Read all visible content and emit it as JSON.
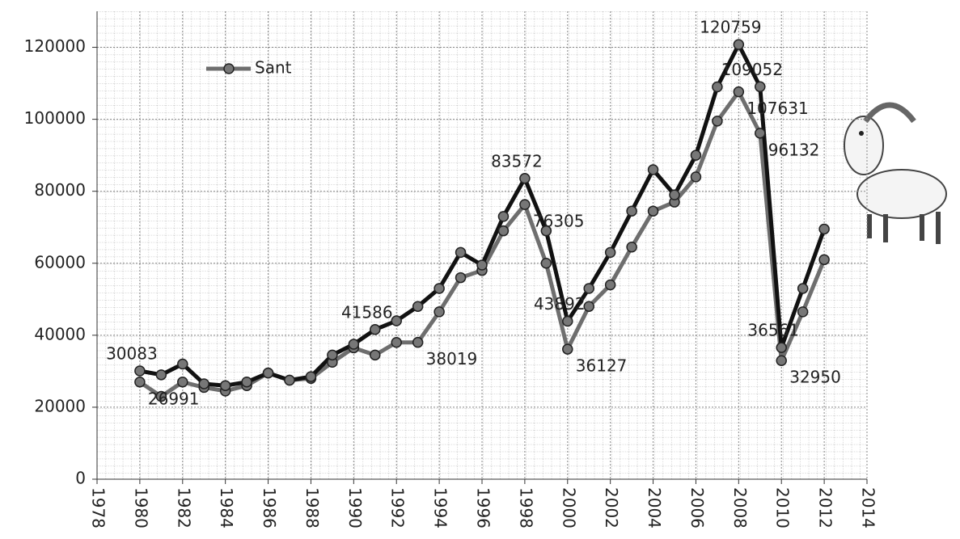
{
  "chart_data": {
    "type": "line",
    "x": [
      1980,
      1981,
      1982,
      1983,
      1984,
      1985,
      1986,
      1987,
      1988,
      1989,
      1990,
      1991,
      1992,
      1993,
      1994,
      1995,
      1996,
      1997,
      1998,
      1999,
      2000,
      2001,
      2002,
      2003,
      2004,
      2005,
      2006,
      2007,
      2008,
      2009,
      2010,
      2011,
      2012
    ],
    "series": [
      {
        "color": "#111111",
        "values": [
          30083,
          29000,
          32000,
          26500,
          26000,
          27000,
          29500,
          27500,
          28500,
          34500,
          37500,
          41586,
          44000,
          48000,
          53000,
          63000,
          59500,
          73000,
          83572,
          69000,
          43892,
          53000,
          63000,
          74500,
          86000,
          79000,
          90000,
          109000,
          120759,
          109052,
          36561,
          53000,
          69500
        ],
        "value_labels": [
          "30083",
          null,
          null,
          null,
          null,
          null,
          null,
          null,
          null,
          null,
          null,
          "41586",
          null,
          null,
          null,
          null,
          null,
          null,
          "83572",
          null,
          "43892",
          null,
          null,
          null,
          null,
          null,
          null,
          null,
          "120759",
          "109052",
          "36561",
          null,
          null
        ]
      },
      {
        "name": "Sant",
        "color": "#6e6e6e",
        "values": [
          26991,
          23000,
          27000,
          25500,
          24500,
          26000,
          29500,
          27500,
          28000,
          32500,
          36500,
          34500,
          38000,
          38019,
          46500,
          56000,
          58000,
          69000,
          76305,
          60000,
          36127,
          48000,
          54000,
          64500,
          74500,
          77000,
          84000,
          99500,
          107631,
          96132,
          32950,
          46500,
          61000
        ],
        "value_labels": [
          "26991",
          null,
          null,
          null,
          null,
          null,
          null,
          null,
          null,
          null,
          null,
          null,
          null,
          "38019",
          null,
          null,
          null,
          null,
          "76305",
          null,
          "36127",
          null,
          null,
          null,
          null,
          null,
          null,
          null,
          "107631",
          "96132",
          "32950",
          null,
          null
        ]
      }
    ],
    "xlim": [
      1978,
      2014
    ],
    "xticks": [
      1978,
      1980,
      1982,
      1984,
      1986,
      1988,
      1990,
      1992,
      1994,
      1996,
      1998,
      2000,
      2002,
      2004,
      2006,
      2008,
      2010,
      2012,
      2014
    ],
    "ylim": [
      0,
      130000
    ],
    "yticks": [
      0,
      20000,
      40000,
      60000,
      80000,
      100000,
      120000
    ],
    "grid": true,
    "legend": "upper left"
  }
}
